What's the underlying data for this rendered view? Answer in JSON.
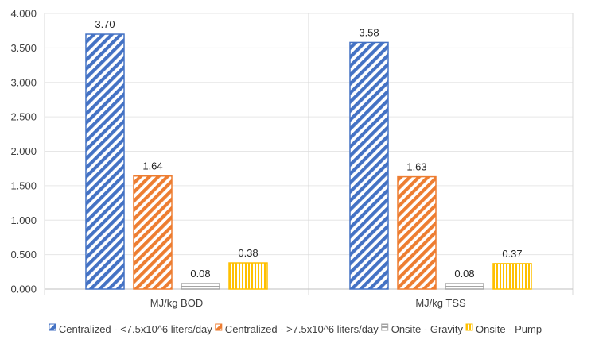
{
  "chart_data": {
    "type": "bar",
    "categories": [
      "MJ/kg BOD",
      "MJ/kg TSS"
    ],
    "series": [
      {
        "name": "Centralized - <7.5x10^6 liters/day",
        "values": [
          3.7,
          3.58
        ],
        "labels": [
          "3.70",
          "3.58"
        ],
        "color": "#4472C4",
        "pattern": "diag"
      },
      {
        "name": "Centralized - >7.5x10^6 liters/day",
        "values": [
          1.64,
          1.63
        ],
        "labels": [
          "1.64",
          "1.63"
        ],
        "color": "#ED7D31",
        "pattern": "diag"
      },
      {
        "name": "Onsite - Gravity",
        "values": [
          0.08,
          0.08
        ],
        "labels": [
          "0.08",
          "0.08"
        ],
        "color": "#A5A5A5",
        "pattern": "horiz"
      },
      {
        "name": "Onsite - Pump",
        "values": [
          0.38,
          0.37
        ],
        "labels": [
          "0.38",
          "0.37"
        ],
        "color": "#FFC000",
        "pattern": "vert"
      }
    ],
    "yticks": [
      "0.000",
      "0.500",
      "1.000",
      "1.500",
      "2.000",
      "2.500",
      "3.000",
      "3.500",
      "4.000"
    ],
    "ylim": [
      0,
      4
    ],
    "legend_position": "bottom",
    "title": "",
    "xlabel": "",
    "ylabel": ""
  }
}
